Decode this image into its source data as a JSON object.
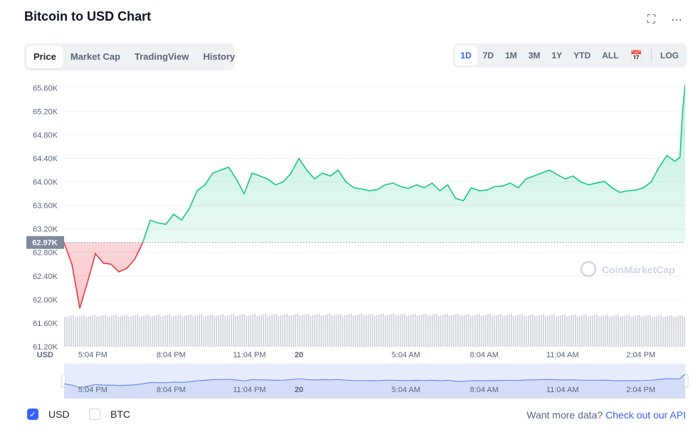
{
  "header": {
    "title": "Bitcoin to USD Chart",
    "fullscreen_icon": "⛶",
    "more_icon": "⋯"
  },
  "tabs": [
    {
      "label": "Price",
      "active": true
    },
    {
      "label": "Market Cap",
      "active": false
    },
    {
      "label": "TradingView",
      "active": false
    },
    {
      "label": "History",
      "active": false
    }
  ],
  "ranges": [
    {
      "label": "1D",
      "active": true
    },
    {
      "label": "7D",
      "active": false
    },
    {
      "label": "1M",
      "active": false
    },
    {
      "label": "3M",
      "active": false
    },
    {
      "label": "1Y",
      "active": false
    },
    {
      "label": "YTD",
      "active": false
    },
    {
      "label": "ALL",
      "active": false
    }
  ],
  "range_calendar_icon": "📅",
  "range_log": "LOG",
  "watermark": "CoinMarketCap",
  "footer": {
    "usd_label": "USD",
    "btc_label": "BTC",
    "check_icon": "✓",
    "api_text": "Want more data?",
    "api_link": "Check out our API"
  },
  "colors": {
    "up": "#16c784",
    "down": "#ea3943",
    "accent": "#3861fb",
    "volume": "#d5d9e0"
  },
  "chart_data": {
    "type": "line",
    "y_unit_label": "USD",
    "ylim": [
      61200,
      65700
    ],
    "yticks": [
      "65.60K",
      "65.20K",
      "64.80K",
      "64.40K",
      "64.00K",
      "63.60K",
      "63.20K",
      "62.80K",
      "62.40K",
      "62.00K",
      "61.60K",
      "61.20K"
    ],
    "ytick_values": [
      65600,
      65200,
      64800,
      64400,
      64000,
      63600,
      63200,
      62800,
      62400,
      62000,
      61600,
      61200
    ],
    "xticks": [
      "5:04 PM",
      "8:04 PM",
      "11:04 PM",
      "20",
      "5:04 AM",
      "8:04 AM",
      "11:04 AM",
      "2:04 PM"
    ],
    "xtick_hours": [
      1.1,
      4.1,
      7.1,
      9.0,
      13.1,
      16.1,
      19.1,
      22.1
    ],
    "open_price": 62970,
    "open_label": "62.97K",
    "x_hours": [
      0,
      0.3,
      0.6,
      0.9,
      1.2,
      1.5,
      1.8,
      2.1,
      2.4,
      2.7,
      3.0,
      3.3,
      3.6,
      3.9,
      4.2,
      4.5,
      4.8,
      5.1,
      5.4,
      5.7,
      6.0,
      6.3,
      6.6,
      6.9,
      7.2,
      7.5,
      7.8,
      8.1,
      8.4,
      8.7,
      9.0,
      9.3,
      9.6,
      9.9,
      10.2,
      10.5,
      10.8,
      11.1,
      11.4,
      11.7,
      12.0,
      12.3,
      12.6,
      12.9,
      13.2,
      13.5,
      13.8,
      14.1,
      14.4,
      14.7,
      15.0,
      15.3,
      15.6,
      15.9,
      16.2,
      16.5,
      16.8,
      17.1,
      17.4,
      17.7,
      18.0,
      18.3,
      18.6,
      18.9,
      19.2,
      19.5,
      19.8,
      20.1,
      20.4,
      20.7,
      21.0,
      21.3,
      21.6,
      21.9,
      22.2,
      22.5,
      22.8,
      23.1,
      23.4,
      23.6,
      23.7,
      23.8
    ],
    "prices": [
      62960,
      62600,
      61850,
      62300,
      62780,
      62620,
      62600,
      62470,
      62530,
      62680,
      62950,
      63350,
      63300,
      63280,
      63450,
      63350,
      63550,
      63850,
      63950,
      64150,
      64200,
      64250,
      64050,
      63800,
      64150,
      64100,
      64050,
      63950,
      64000,
      64150,
      64400,
      64200,
      64050,
      64150,
      64100,
      64200,
      64000,
      63900,
      63880,
      63850,
      63870,
      63950,
      63980,
      63920,
      63890,
      63950,
      63900,
      63980,
      63850,
      63950,
      63720,
      63680,
      63900,
      63850,
      63860,
      63920,
      63930,
      63980,
      63900,
      64050,
      64100,
      64150,
      64200,
      64120,
      64050,
      64100,
      64000,
      63950,
      63980,
      64010,
      63900,
      63820,
      63850,
      63860,
      63900,
      64000,
      64250,
      64450,
      64350,
      64420,
      65200,
      65650
    ],
    "volume_level": [
      0.72,
      0.75,
      0.78
    ]
  }
}
